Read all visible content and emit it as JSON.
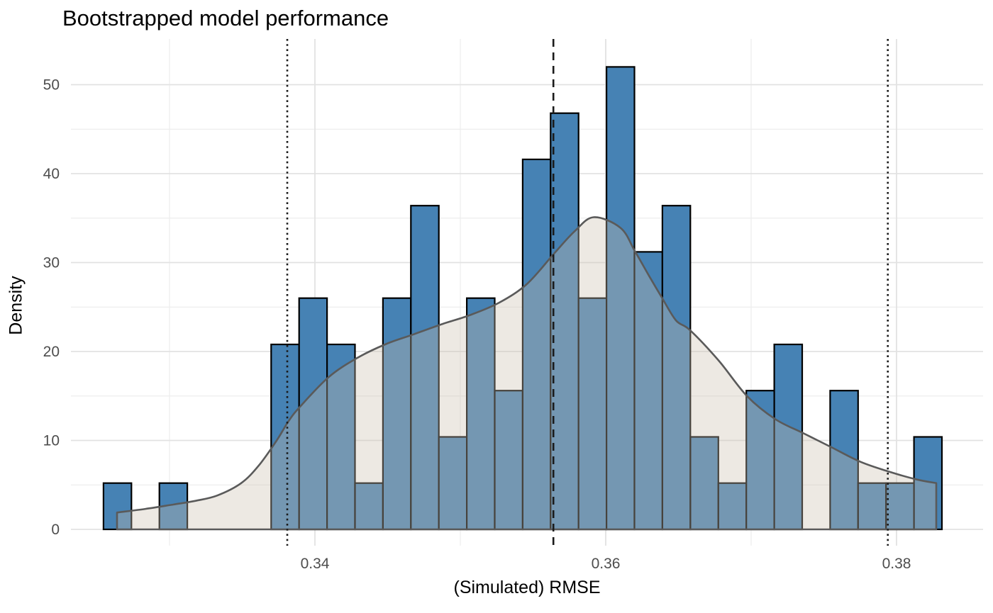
{
  "figure": {
    "title": "Bootstrapped model performance",
    "x_axis": {
      "title": "(Simulated) RMSE",
      "tick_labels": [
        "0.34",
        "0.36",
        "0.38"
      ],
      "tick_values": [
        0.34,
        0.36,
        0.38
      ],
      "minor_tick_values": [
        0.33,
        0.35,
        0.37
      ]
    },
    "y_axis": {
      "title": "Density",
      "tick_labels": [
        "0",
        "10",
        "20",
        "30",
        "40",
        "50"
      ],
      "tick_values": [
        0,
        10,
        20,
        30,
        40,
        50
      ],
      "minor_tick_values": [
        5,
        15,
        25,
        35,
        45
      ]
    }
  },
  "chart_data": {
    "type": "bar",
    "subtype": "histogram_with_density_overlay",
    "title": "Bootstrapped model performance",
    "xlabel": "(Simulated) RMSE",
    "ylabel": "Density",
    "xlim": [
      0.3232,
      0.386
    ],
    "ylim": [
      0,
      55
    ],
    "grid": "on",
    "legend": "none",
    "histogram": {
      "bin_start": 0.32546,
      "bin_width": 0.001922,
      "counts": [
        1,
        0,
        1,
        0,
        0,
        0,
        4,
        5,
        4,
        1,
        5,
        7,
        2,
        5,
        3,
        8,
        9,
        5,
        10,
        6,
        7,
        2,
        1,
        3,
        4,
        0,
        3,
        1,
        1,
        2
      ],
      "density_per_count": 5.2,
      "max_density": 52.0
    },
    "density_curve": {
      "x": [
        0.32639,
        0.32834,
        0.33029,
        0.33176,
        0.33327,
        0.33493,
        0.33615,
        0.33737,
        0.3382,
        0.33898,
        0.34093,
        0.34283,
        0.34483,
        0.34673,
        0.34878,
        0.35068,
        0.35268,
        0.35459,
        0.35644,
        0.35785,
        0.35917,
        0.36102,
        0.362,
        0.36298,
        0.36385,
        0.36483,
        0.3658,
        0.36776,
        0.36971,
        0.37166,
        0.37361,
        0.37556,
        0.37751,
        0.37946,
        0.38141,
        0.38273
      ],
      "density": [
        1.9,
        2.3,
        2.8,
        3.2,
        3.8,
        5.2,
        7.2,
        10.0,
        12.2,
        13.8,
        17.1,
        19.2,
        20.8,
        21.9,
        23.1,
        24.1,
        25.5,
        27.6,
        31.0,
        33.5,
        35.1,
        33.9,
        31.3,
        28.5,
        26.1,
        23.5,
        22.4,
        19.0,
        15.0,
        12.4,
        10.8,
        9.2,
        7.6,
        6.5,
        5.6,
        5.2
      ],
      "peak_x": 0.3592,
      "peak_density": 35.1
    },
    "reference_lines": [
      {
        "value": 0.3381,
        "style": "dotted"
      },
      {
        "value": 0.3564,
        "style": "dashed"
      },
      {
        "value": 0.3794,
        "style": "dotted"
      }
    ]
  },
  "colors": {
    "bar_fill": "#4682B4",
    "bar_stroke": "#000000",
    "density_fill": "#CBBFAE",
    "density_fill_opacity": 0.35,
    "density_stroke": "#5A5A5A",
    "grid_major": "#E2E2E2",
    "grid_minor": "#ECECEC",
    "tick_label": "#4D4D4D",
    "reference_line": "#1A1A1A",
    "background": "#FFFFFF"
  }
}
